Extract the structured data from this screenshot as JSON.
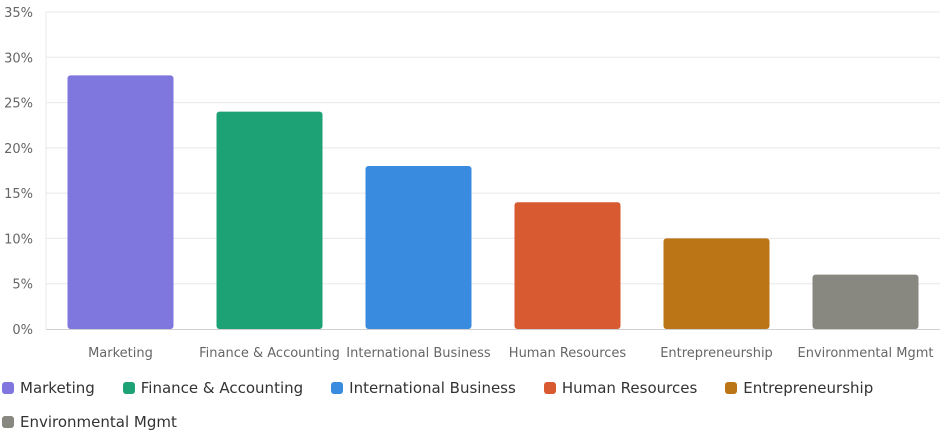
{
  "colors": {
    "grid": "#e8e8e8",
    "axis": "#cfcfcf",
    "tick_text": "#666666",
    "legend_text": "#333333"
  },
  "chart_data": {
    "type": "bar",
    "categories": [
      "Marketing",
      "Finance & Accounting",
      "International Business",
      "Human Resources",
      "Entrepreneurship",
      "Environmental Mgmt"
    ],
    "values": [
      28,
      24,
      18,
      14,
      10,
      6
    ],
    "colors": [
      "#7f77dd",
      "#1da276",
      "#398be0",
      "#d85a30",
      "#bb7516",
      "#888780"
    ],
    "y_ticks": [
      "0%",
      "5%",
      "10%",
      "15%",
      "20%",
      "25%",
      "30%",
      "35%"
    ],
    "ylim": [
      0,
      35
    ],
    "grid": true,
    "legend": "bottom",
    "title": "",
    "xlabel": "",
    "ylabel": ""
  }
}
